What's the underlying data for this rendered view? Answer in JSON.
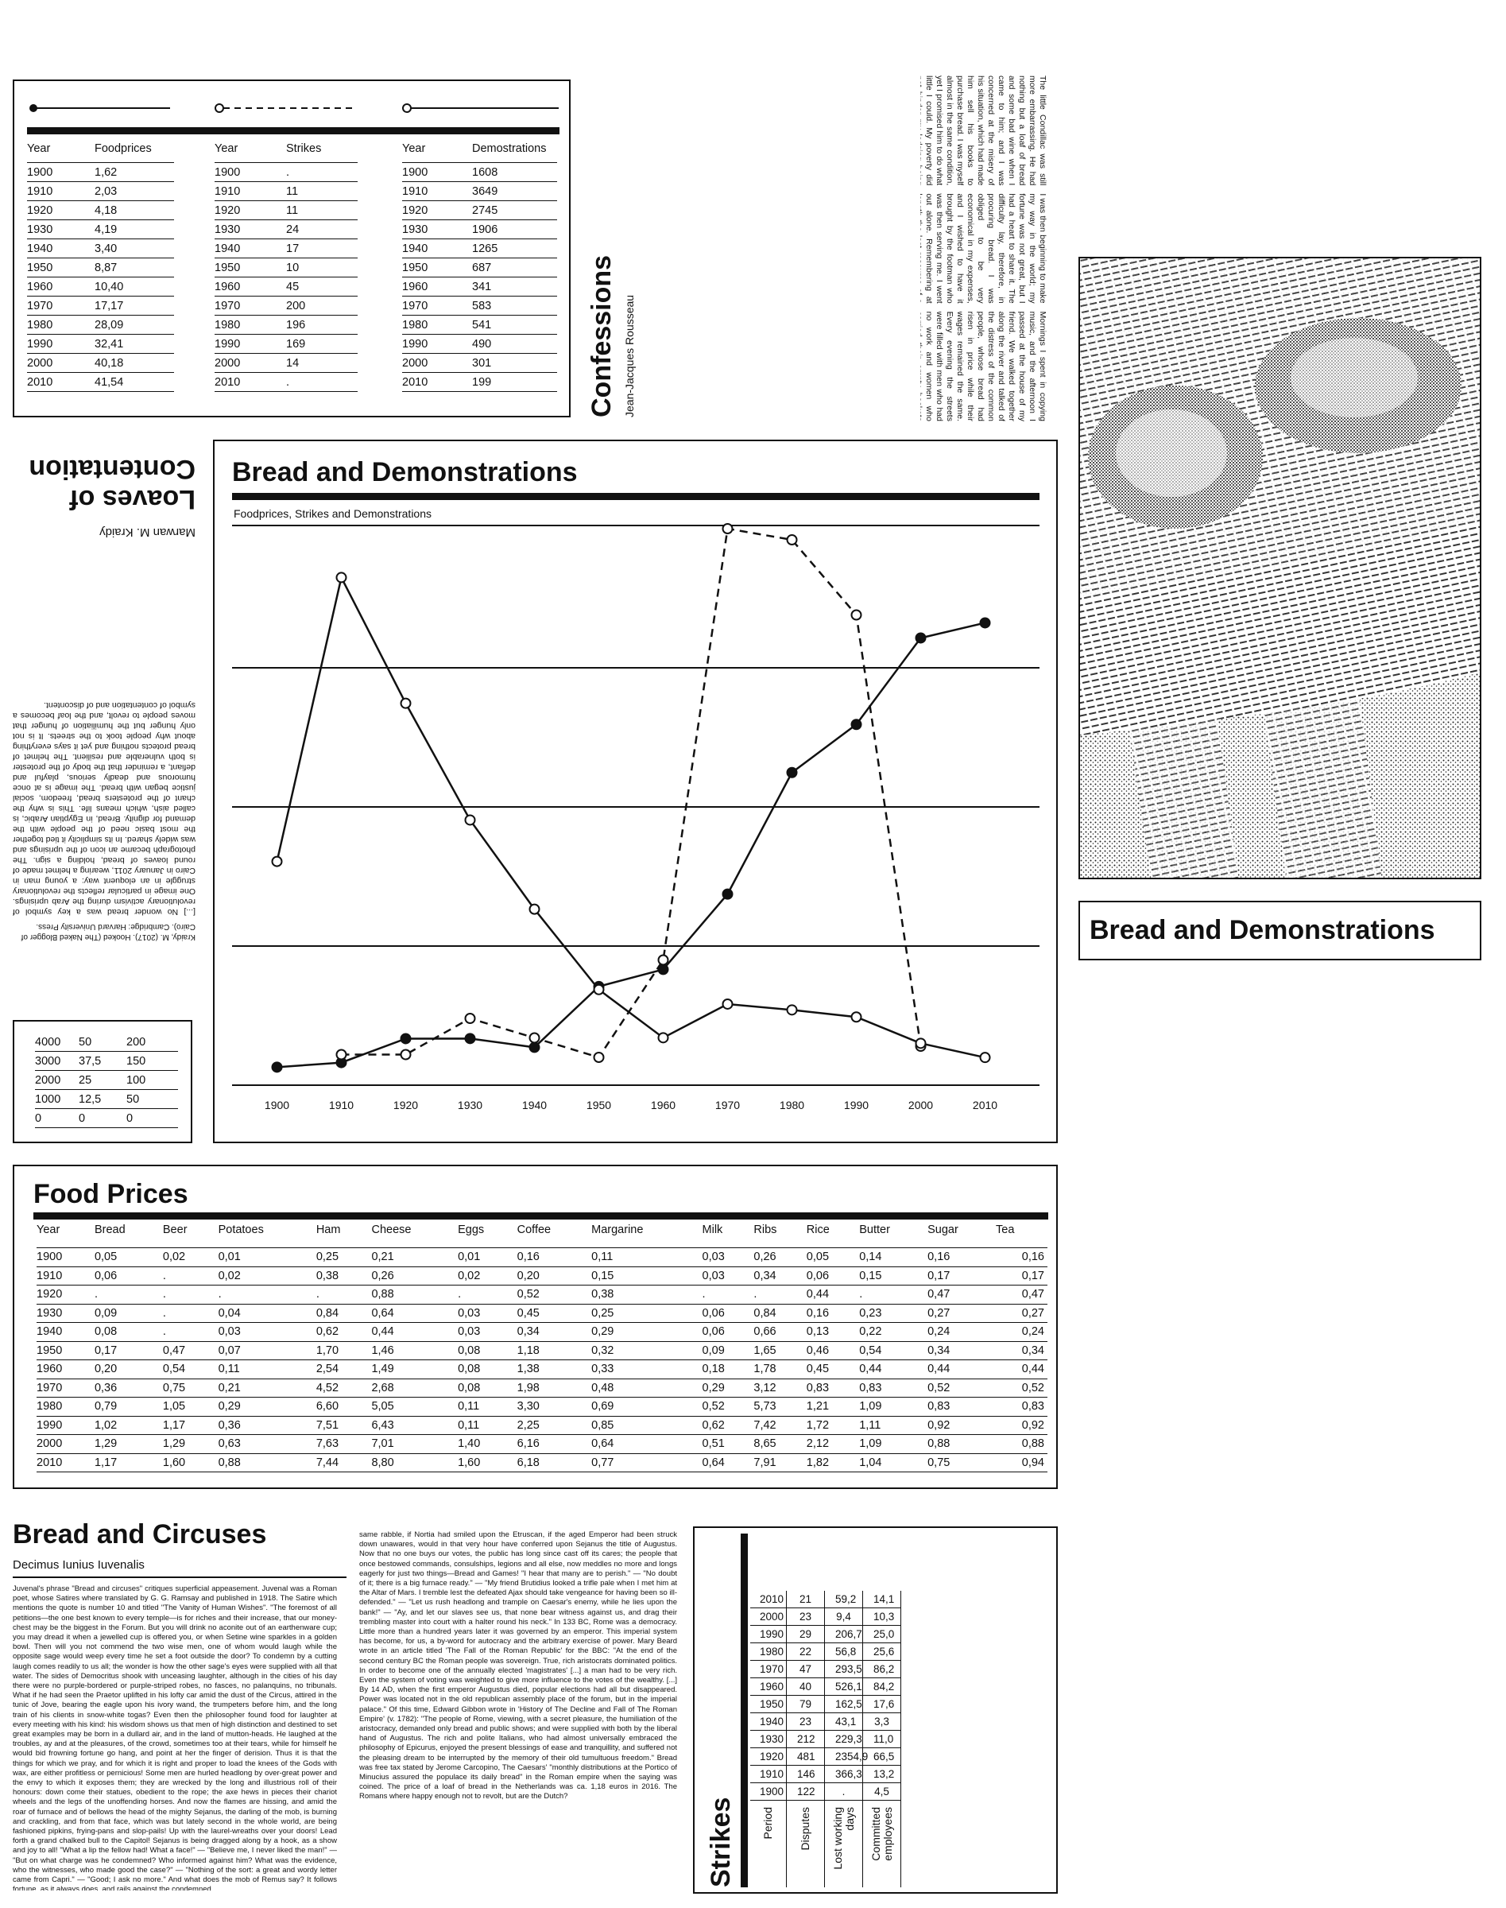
{
  "top_tables": {
    "food": {
      "headers": [
        "Year",
        "Foodprices"
      ],
      "rows": [
        [
          "1900",
          "1,62"
        ],
        [
          "1910",
          "2,03"
        ],
        [
          "1920",
          "4,18"
        ],
        [
          "1930",
          "4,19"
        ],
        [
          "1940",
          "3,40"
        ],
        [
          "1950",
          "8,87"
        ],
        [
          "1960",
          "10,40"
        ],
        [
          "1970",
          "17,17"
        ],
        [
          "1980",
          "28,09"
        ],
        [
          "1990",
          "32,41"
        ],
        [
          "2000",
          "40,18"
        ],
        [
          "2010",
          "41,54"
        ]
      ]
    },
    "strikes": {
      "headers": [
        "Year",
        "Strikes"
      ],
      "rows": [
        [
          "1900",
          "."
        ],
        [
          "1910",
          "11"
        ],
        [
          "1920",
          "11"
        ],
        [
          "1930",
          "24"
        ],
        [
          "1940",
          "17"
        ],
        [
          "1950",
          "10"
        ],
        [
          "1960",
          "45"
        ],
        [
          "1970",
          "200"
        ],
        [
          "1980",
          "196"
        ],
        [
          "1990",
          "169"
        ],
        [
          "2000",
          "14"
        ],
        [
          "2010",
          "."
        ]
      ]
    },
    "demonstrations": {
      "headers": [
        "Year",
        "Demostrations"
      ],
      "rows": [
        [
          "1900",
          "1608"
        ],
        [
          "1910",
          "3649"
        ],
        [
          "1920",
          "2745"
        ],
        [
          "1930",
          "1906"
        ],
        [
          "1940",
          "1265"
        ],
        [
          "1950",
          "687"
        ],
        [
          "1960",
          "341"
        ],
        [
          "1970",
          "583"
        ],
        [
          "1980",
          "541"
        ],
        [
          "1990",
          "490"
        ],
        [
          "2000",
          "301"
        ],
        [
          "2010",
          "199"
        ]
      ]
    }
  },
  "confessions": {
    "title": "Confessions",
    "author": "Jean-Jacques Rousseau",
    "col1": "The little Condillac was still more embarrassing. He had nothing but a loaf of bread and some bad wine when I came to him; and I was concerned at the misery of his situation, which had made him sell his books to purchase bread. I was myself almost in the same condition, yet I promised him to do what little I could. My poverty did not hinder my lodging being the receptacle of his complaints; the landlady was reasonable, and she fed him for a considerable time upon credit. I saw him every day, and we dined together at the ordinary, where we were tolerably well served. I had, besides, made an acquaintance with Diderot, and introduced him to Condillac, who also became one of his friends.",
    "col2": "I was then beginning to make my way in the world; my fortune was not great, but I had a heart to share it. The difficulty lay, therefore, in procuring bread. I was obliged to be very economical in my expenses, and I wished to have it brought by the footman who was then serving me. I went out alone. Remembering at length the last resource of a great princess who, when told that the peasants had no bread, replied: Let them eat cake, I bought some little cakes. Even that was difficult, as I did not dare to ask for them in a shop where I was known.",
    "col3": "Mornings I spent in copying music, and the afternoon I passed at the house of my friend. We walked together along the river and talked of the distress of the common people, whose bread had risen in price while their wages remained the same. Every evening the streets were filled with men who had no work and women who carried their empty baskets home. Such were the scenes that first taught me how closely the price of a loaf is bound to the temper of a people, and how little the great of this world understand of either."
  },
  "contentation": {
    "title_line1": "Loaves of",
    "title_line2": "Contentation",
    "author": "Marwan M. Kraidy",
    "body": "[...] No wonder bread was a key symbol of revolutionary activism during the Arab uprisings. One image in particular reflects the revolutionary struggle in an eloquent way: a young man in Cairo in January 2011, wearing a helmet made of round loaves of bread, holding a sign. The photograph became an icon of the uprisings and was widely shared. In its simplicity it tied together the most basic need of the people with the demand for dignity. Bread, in Egyptian Arabic, is called aish, which means life. This is why the chant of the protesters bread, freedom, social justice began with bread. The image is at once humorous and deadly serious, playful and defiant, a reminder that the body of the protester is both vulnerable and resilient. The helmet of bread protects nothing and yet it says everything about why people took to the streets. It is not only hunger but the humiliation of hunger that moves people to revolt, and the loaf becomes a symbol of contentation and of discontent.",
    "source": "Kraidy, M. (2017). Hooked (The Naked Blogger of Cairo). Cambridge: Harvard University Press."
  },
  "chart_data": {
    "type": "line",
    "title": "Bread and Demonstrations",
    "subtitle": "Foodprices, Strikes and Demonstrations",
    "x": [
      1900,
      1910,
      1920,
      1930,
      1940,
      1950,
      1960,
      1970,
      1980,
      1990,
      2000,
      2010
    ],
    "x_tick_labels": [
      "1900",
      "1910",
      "1920",
      "1930",
      "1940",
      "1950",
      "1960",
      "1970",
      "1980",
      "1990",
      "2000",
      "2010"
    ],
    "series": [
      {
        "name": "Foodprices",
        "style": "solid-filled",
        "values": [
          1.62,
          2.03,
          4.18,
          4.19,
          3.4,
          8.87,
          10.4,
          17.17,
          28.09,
          32.41,
          40.18,
          41.54
        ],
        "ylim": [
          0,
          50
        ]
      },
      {
        "name": "Strikes",
        "style": "dashed-hollow",
        "values": [
          null,
          11,
          11,
          24,
          17,
          10,
          45,
          200,
          196,
          169,
          14,
          null
        ],
        "ylim": [
          0,
          200
        ]
      },
      {
        "name": "Demostrations",
        "style": "solid-hollow",
        "values": [
          1608,
          3649,
          2745,
          1906,
          1265,
          687,
          341,
          583,
          541,
          490,
          301,
          199
        ],
        "ylim": [
          0,
          4000
        ]
      }
    ],
    "legend_axis": {
      "rows": [
        [
          "4000",
          "50",
          "200"
        ],
        [
          "3000",
          "37,5",
          "150"
        ],
        [
          "2000",
          "25",
          "100"
        ],
        [
          "1000",
          "12,5",
          "50"
        ],
        [
          "0",
          "0",
          "0"
        ]
      ]
    },
    "grid": true
  },
  "photo": {
    "caption": "Bread and Demonstrations"
  },
  "food_prices": {
    "title": "Food Prices",
    "headers": [
      "Year",
      "Bread",
      "Beer",
      "Potatoes",
      "Ham",
      "Cheese",
      "Eggs",
      "Coffee",
      "Margarine",
      "Milk",
      "Ribs",
      "Rice",
      "Butter",
      "Sugar",
      "Tea"
    ],
    "rows": [
      [
        "1900",
        "0,05",
        "0,02",
        "0,01",
        "0,25",
        "0,21",
        "0,01",
        "0,16",
        "0,11",
        "0,03",
        "0,26",
        "0,05",
        "0,14",
        "0,16",
        "0,16"
      ],
      [
        "1910",
        "0,06",
        ".",
        "0,02",
        "0,38",
        "0,26",
        "0,02",
        "0,20",
        "0,15",
        "0,03",
        "0,34",
        "0,06",
        "0,15",
        "0,17",
        "0,17"
      ],
      [
        "1920",
        ".",
        ".",
        ".",
        ".",
        "0,88",
        ".",
        "0,52",
        "0,38",
        ".",
        ".",
        "0,44",
        ".",
        "0,47",
        "0,47"
      ],
      [
        "1930",
        "0,09",
        ".",
        "0,04",
        "0,84",
        "0,64",
        "0,03",
        "0,45",
        "0,25",
        "0,06",
        "0,84",
        "0,16",
        "0,23",
        "0,27",
        "0,27"
      ],
      [
        "1940",
        "0,08",
        ".",
        "0,03",
        "0,62",
        "0,44",
        "0,03",
        "0,34",
        "0,29",
        "0,06",
        "0,66",
        "0,13",
        "0,22",
        "0,24",
        "0,24"
      ],
      [
        "1950",
        "0,17",
        "0,47",
        "0,07",
        "1,70",
        "1,46",
        "0,08",
        "1,18",
        "0,32",
        "0,09",
        "1,65",
        "0,46",
        "0,54",
        "0,34",
        "0,34"
      ],
      [
        "1960",
        "0,20",
        "0,54",
        "0,11",
        "2,54",
        "1,49",
        "0,08",
        "1,38",
        "0,33",
        "0,18",
        "1,78",
        "0,45",
        "0,44",
        "0,44",
        "0,44"
      ],
      [
        "1970",
        "0,36",
        "0,75",
        "0,21",
        "4,52",
        "2,68",
        "0,08",
        "1,98",
        "0,48",
        "0,29",
        "3,12",
        "0,83",
        "0,83",
        "0,52",
        "0,52"
      ],
      [
        "1980",
        "0,79",
        "1,05",
        "0,29",
        "6,60",
        "5,05",
        "0,11",
        "3,30",
        "0,69",
        "0,52",
        "5,73",
        "1,21",
        "1,09",
        "0,83",
        "0,83"
      ],
      [
        "1990",
        "1,02",
        "1,17",
        "0,36",
        "7,51",
        "6,43",
        "0,11",
        "2,25",
        "0,85",
        "0,62",
        "7,42",
        "1,72",
        "1,11",
        "0,92",
        "0,92"
      ],
      [
        "2000",
        "1,29",
        "1,29",
        "0,63",
        "7,63",
        "7,01",
        "1,40",
        "6,16",
        "0,64",
        "0,51",
        "8,65",
        "2,12",
        "1,09",
        "0,88",
        "0,88"
      ],
      [
        "2010",
        "1,17",
        "1,60",
        "0,88",
        "7,44",
        "8,80",
        "1,60",
        "6,18",
        "0,77",
        "0,64",
        "7,91",
        "1,82",
        "1,04",
        "0,75",
        "0,94"
      ]
    ]
  },
  "circuses": {
    "title": "Bread and Circuses",
    "author": "Decimus Iunius Iuvenalis",
    "col1": "Juvenal's phrase \"Bread and circuses\" critiques superficial appeasement. Juvenal was a Roman poet, whose Satires where translated by G. G. Ramsay and published in 1918. The Satire which mentions the quote is number 10 and titled \"The Vanity of Human Wishes\". \"The foremost of all petitions—the one best known to every temple—is for riches and their increase, that our money-chest may be the biggest in the Forum. But you will drink no aconite out of an earthenware cup; you may dread it when a jewelled cup is offered you, or when Setine wine sparkles in a golden bowl. Then will you not commend the two wise men, one of whom would laugh while the opposite sage would weep every time he set a foot outside the door? To condemn by a cutting laugh comes readily to us all; the wonder is how the other sage's eyes were supplied with all that water. The sides of Democritus shook with unceasing laughter, although in the cities of his day there were no purple-bordered or purple-striped robes, no fasces, no palanquins, no tribunals. What if he had seen the Praetor uplifted in his lofty car amid the dust of the Circus, attired in the tunic of Jove, bearing the eagle upon his ivory wand, the trumpeters before him, and the long train of his clients in snow-white togas? Even then the philosopher found food for laughter at every meeting with his kind: his wisdom shows us that men of high distinction and destined to set great examples may be born in a dullard air, and in the land of mutton-heads. He laughed at the troubles, ay and at the pleasures, of the crowd, sometimes too at their tears, while for himself he would bid frowning fortune go hang, and point at her the finger of derision. Thus it is that the things for which we pray, and for which it is right and proper to load the knees of the Gods with wax, are either profitless or pernicious! Some men are hurled headlong by over-great power and the envy to which it exposes them; they are wrecked by the long and illustrious roll of their honours: down come their statues, obedient to the rope; the axe hews in pieces their chariot wheels and the legs of the unoffending horses. And now the flames are hissing, and amid the roar of furnace and of bellows the head of the mighty Sejanus, the darling of the mob, is burning and crackling, and from that face, which was but lately second in the whole world, are being fashioned pipkins, frying-pans and slop-pails! Up with the laurel-wreaths over your doors! Lead forth a grand chalked bull to the Capitol! Sejanus is being dragged along by a hook, as a show and joy to all! \"What a lip the fellow had! What a face!\" — \"Believe me, I never liked the man!\" — \"But on what charge was he condemned? Who informed against him? What was the evidence, who the witnesses, who made good the case?\" — \"Nothing of the sort: a great and wordy letter came from Capri.\" — \"Good; I ask no more.\" And what does the mob of Remus say? It follows fortune, as it always does, and rails against the condemned.",
    "col2": "same rabble, if Nortia had smiled upon the Etruscan, if the aged Emperor had been struck down unawares, would in that very hour have conferred upon Sejanus the title of Augustus. Now that no one buys our votes, the public has long since cast off its cares; the people that once bestowed commands, consulships, legions and all else, now meddles no more and longs eagerly for just two things—Bread and Games! \"I hear that many are to perish.\" — \"No doubt of it; there is a big furnace ready.\" — \"My friend Brutidius looked a trifle pale when I met him at the Altar of Mars. I tremble lest the defeated Ajax should take vengeance for having been so ill-defended.\" — \"Let us rush headlong and trample on Caesar's enemy, while he lies upon the bank!\" — \"Ay, and let our slaves see us, that none bear witness against us, and drag their trembling master into court with a halter round his neck.\" In 133 BC, Rome was a democracy. Little more than a hundred years later it was governed by an emperor. This imperial system has become, for us, a by-word for autocracy and the arbitrary exercise of power. Mary Beard wrote in an article titled 'The Fall of the Roman Republic' for the BBC: \"At the end of the second century BC the Roman people was sovereign. True, rich aristocrats dominated politics. In order to become one of the annually elected 'magistrates' [...] a man had to be very rich. Even the system of voting was weighted to give more influence to the votes of the wealthy. [...] By 14 AD, when the first emperor Augustus died, popular elections had all but disappeared. Power was located not in the old republican assembly place of the forum, but in the imperial palace.\" Of this time, Edward Gibbon wrote in 'History of The Decline and Fall of The Roman Empire' (v. 1782): \"The people of Rome, viewing, with a secret pleasure, the humiliation of the aristocracy, demanded only bread and public shows; and were supplied with both by the liberal hand of Augustus. The rich and polite Italians, who had almost universally embraced the philosophy of Epicurus, enjoyed the present blessings of ease and tranquillity, and suffered not the pleasing dream to be interrupted by the memory of their old tumultuous freedom.\" Bread was free tax stated by Jerome Carcopino, The Caesars' \"monthly distributions at the Portico of Minucius assured the populace its daily bread\" in the Roman empire when the saying was coined. The price of a loaf of bread in the Netherlands was ca. 1,18 euros in 2016. The Romans where happy enough not to revolt, but are the Dutch?"
  },
  "strikes_table": {
    "title": "Strikes",
    "headers": [
      "Period",
      "Disputes",
      "Lost working days",
      "Committed employees"
    ],
    "rows": [
      [
        "1900",
        "122",
        ".",
        "4,5"
      ],
      [
        "1910",
        "146",
        "366,3",
        "13,2"
      ],
      [
        "1920",
        "481",
        "2354,9",
        "66,5"
      ],
      [
        "1930",
        "212",
        "229,3",
        "11,0"
      ],
      [
        "1940",
        "23",
        "43,1",
        "3,3"
      ],
      [
        "1950",
        "79",
        "162,5",
        "17,6"
      ],
      [
        "1960",
        "40",
        "526,1",
        "84,2"
      ],
      [
        "1970",
        "47",
        "293,5",
        "86,2"
      ],
      [
        "1980",
        "22",
        "56,8",
        "25,6"
      ],
      [
        "1990",
        "29",
        "206,7",
        "25,0"
      ],
      [
        "2000",
        "23",
        "9,4",
        "10,3"
      ],
      [
        "2010",
        "21",
        "59,2",
        "14,1"
      ]
    ]
  }
}
